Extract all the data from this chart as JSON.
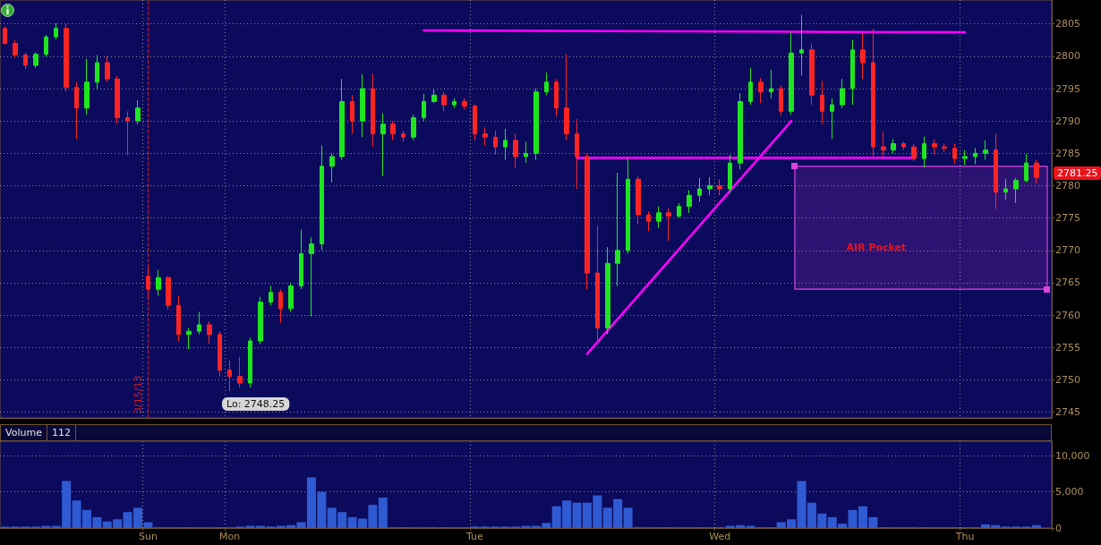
{
  "chart_data": [
    {
      "type": "candlestick",
      "categories": [
        null,
        null,
        null,
        null,
        null,
        null,
        null,
        null,
        null,
        null,
        null,
        null,
        null,
        null,
        "Sun",
        null,
        null,
        null,
        null,
        null,
        null,
        null,
        "Mon",
        null,
        null,
        null,
        null,
        null,
        null,
        null,
        null,
        null,
        null,
        null,
        null,
        null,
        null,
        null,
        null,
        null,
        null,
        null,
        null,
        null,
        null,
        null,
        "Tue",
        null,
        null,
        null,
        null,
        null,
        null,
        null,
        null,
        null,
        null,
        null,
        null,
        null,
        null,
        null,
        null,
        null,
        null,
        null,
        null,
        null,
        null,
        null,
        "Wed",
        null,
        null,
        null,
        null,
        null,
        null,
        null,
        null,
        null,
        null,
        null,
        null,
        null,
        null,
        null,
        null,
        null,
        null,
        null,
        null,
        null,
        null,
        null,
        "Thu",
        null,
        null,
        null,
        null,
        null,
        null,
        null,
        null
      ],
      "ohlc": [
        [
          2804.3,
          2804.6,
          2801.8,
          2802.0
        ],
        [
          2802.0,
          2802.5,
          2799.8,
          2800.2
        ],
        [
          2800.2,
          2800.6,
          2798.0,
          2798.6
        ],
        [
          2798.6,
          2800.6,
          2798.2,
          2800.3
        ],
        [
          2800.3,
          2803.3,
          2800.0,
          2803.0
        ],
        [
          2803.0,
          2805.1,
          2802.6,
          2804.3
        ],
        [
          2804.3,
          2805.0,
          2794.5,
          2795.2
        ],
        [
          2795.2,
          2796.0,
          2787.2,
          2792.0
        ],
        [
          2792.0,
          2799.6,
          2791.0,
          2796.0
        ],
        [
          2796.0,
          2800.2,
          2795.0,
          2799.0
        ],
        [
          2799.0,
          2800.0,
          2796.0,
          2796.5
        ],
        [
          2796.5,
          2797.0,
          2789.5,
          2790.5
        ],
        [
          2790.5,
          2791.5,
          2784.7,
          2790.0
        ],
        [
          2790.0,
          2793.2,
          2789.5,
          2792.0
        ],
        [
          2766.0,
          2767.5,
          2762.5,
          2764.0
        ],
        [
          2764.0,
          2767.0,
          2763.0,
          2765.8
        ],
        [
          2765.8,
          2766.0,
          2760.8,
          2761.5
        ],
        [
          2761.5,
          2763.0,
          2756.0,
          2757.0
        ],
        [
          2757.0,
          2758.0,
          2754.7,
          2757.5
        ],
        [
          2757.5,
          2760.5,
          2757.0,
          2758.5
        ],
        [
          2758.5,
          2759.0,
          2755.6,
          2757.0
        ],
        [
          2757.0,
          2757.5,
          2750.5,
          2751.5
        ],
        [
          2751.5,
          2753.0,
          2748.25,
          2750.5
        ],
        [
          2750.5,
          2753.5,
          2748.8,
          2749.5
        ],
        [
          2749.5,
          2756.5,
          2748.8,
          2756.0
        ],
        [
          2756.0,
          2762.8,
          2755.5,
          2762.0
        ],
        [
          2762.0,
          2764.5,
          2761.5,
          2763.5
        ],
        [
          2763.5,
          2764.0,
          2758.8,
          2761.0
        ],
        [
          2761.0,
          2765.0,
          2760.5,
          2764.5
        ],
        [
          2764.5,
          2773.2,
          2764.0,
          2769.5
        ],
        [
          2769.5,
          2772.0,
          2759.8,
          2771.0
        ],
        [
          2771.0,
          2786.2,
          2770.0,
          2783.0
        ],
        [
          2783.0,
          2785.0,
          2780.5,
          2784.5
        ],
        [
          2784.5,
          2796.5,
          2784.0,
          2793.0
        ],
        [
          2793.0,
          2794.0,
          2788.0,
          2790.0
        ],
        [
          2790.0,
          2797.2,
          2787.5,
          2795.0
        ],
        [
          2795.0,
          2797.3,
          2786.0,
          2788.0
        ],
        [
          2788.0,
          2791.2,
          2781.5,
          2789.5
        ],
        [
          2789.5,
          2790.0,
          2787.0,
          2788.0
        ],
        [
          2788.0,
          2788.5,
          2786.8,
          2787.5
        ],
        [
          2787.5,
          2791.0,
          2787.0,
          2790.5
        ],
        [
          2790.5,
          2794.2,
          2790.0,
          2793.0
        ],
        [
          2793.0,
          2795.0,
          2792.8,
          2794.0
        ],
        [
          2794.0,
          2794.5,
          2791.5,
          2792.5
        ],
        [
          2792.5,
          2793.5,
          2792.0,
          2793.0
        ],
        [
          2793.0,
          2793.5,
          2791.8,
          2792.3
        ],
        [
          2792.3,
          2792.5,
          2787.0,
          2788.0
        ],
        [
          2788.0,
          2789.0,
          2786.2,
          2787.5
        ],
        [
          2787.5,
          2788.5,
          2784.8,
          2786.0
        ],
        [
          2786.0,
          2788.8,
          2784.0,
          2787.0
        ],
        [
          2787.0,
          2788.0,
          2782.8,
          2784.5
        ],
        [
          2784.5,
          2786.8,
          2783.5,
          2785.0
        ],
        [
          2785.0,
          2795.0,
          2784.0,
          2794.5
        ],
        [
          2794.5,
          2797.5,
          2794.0,
          2796.0
        ],
        [
          2796.0,
          2796.5,
          2790.7,
          2792.0
        ],
        [
          2792.0,
          2800.3,
          2787.0,
          2788.0
        ],
        [
          2788.0,
          2790.3,
          2779.5,
          2784.5
        ],
        [
          2784.5,
          2785.0,
          2764.0,
          2766.5
        ],
        [
          2766.5,
          2773.8,
          2755.5,
          2758.0
        ],
        [
          2758.0,
          2770.5,
          2757.0,
          2768.0
        ],
        [
          2768.0,
          2782.0,
          2764.5,
          2770.0
        ],
        [
          2770.0,
          2784.2,
          2769.5,
          2781.0
        ],
        [
          2781.0,
          2781.5,
          2774.0,
          2775.5
        ],
        [
          2775.5,
          2776.0,
          2773.0,
          2774.5
        ],
        [
          2774.5,
          2776.8,
          2773.5,
          2775.8
        ],
        [
          2775.8,
          2776.5,
          2771.5,
          2775.3
        ],
        [
          2775.3,
          2777.3,
          2775.0,
          2776.8
        ],
        [
          2776.8,
          2779.3,
          2775.8,
          2778.5
        ],
        [
          2778.5,
          2781.2,
          2777.5,
          2779.5
        ],
        [
          2779.5,
          2781.3,
          2778.5,
          2780.0
        ],
        [
          2780.0,
          2781.0,
          2778.5,
          2779.5
        ],
        [
          2779.5,
          2784.8,
          2778.8,
          2783.5
        ],
        [
          2783.5,
          2794.3,
          2782.5,
          2793.0
        ],
        [
          2793.0,
          2798.2,
          2792.5,
          2796.0
        ],
        [
          2796.0,
          2796.6,
          2792.8,
          2794.5
        ],
        [
          2794.5,
          2797.9,
          2793.5,
          2795.0
        ],
        [
          2795.0,
          2795.5,
          2790.8,
          2791.5
        ],
        [
          2791.5,
          2803.7,
          2791.0,
          2800.5
        ],
        [
          2800.5,
          2806.4,
          2797.0,
          2801.0
        ],
        [
          2801.0,
          2802.0,
          2792.5,
          2794.0
        ],
        [
          2794.0,
          2796.2,
          2789.5,
          2791.5
        ],
        [
          2791.5,
          2793.5,
          2787.2,
          2792.5
        ],
        [
          2792.5,
          2796.5,
          2792.0,
          2795.0
        ],
        [
          2795.0,
          2802.5,
          2792.5,
          2801.0
        ],
        [
          2801.0,
          2803.6,
          2796.5,
          2799.0
        ],
        [
          2799.0,
          2804.3,
          2784.5,
          2786.0
        ],
        [
          2786.0,
          2788.4,
          2784.5,
          2785.5
        ],
        [
          2785.5,
          2787.2,
          2785.0,
          2786.5
        ],
        [
          2786.5,
          2786.8,
          2785.5,
          2786.0
        ],
        [
          2786.0,
          2786.5,
          2783.8,
          2784.2
        ],
        [
          2784.2,
          2787.6,
          2782.8,
          2786.5
        ],
        [
          2786.5,
          2787.2,
          2784.8,
          2786.0
        ],
        [
          2786.0,
          2786.5,
          2785.2,
          2785.8
        ],
        [
          2785.8,
          2786.5,
          2783.4,
          2784.2
        ],
        [
          2784.2,
          2785.5,
          2783.2,
          2784.5
        ],
        [
          2784.5,
          2785.8,
          2783.3,
          2785.0
        ],
        [
          2785.0,
          2787.0,
          2784.0,
          2785.5
        ],
        [
          2785.5,
          2788.0,
          2776.4,
          2779.0
        ],
        [
          2779.0,
          2781.0,
          2777.8,
          2779.5
        ],
        [
          2779.5,
          2781.2,
          2777.3,
          2780.8
        ],
        [
          2780.8,
          2784.9,
          2780.5,
          2783.5
        ],
        [
          2783.5,
          2784.0,
          2780.3,
          2781.25
        ],
        null
      ],
      "colors": [
        "#ff2424",
        "#ff2424",
        "#ff2424",
        "#1ee61e",
        "#1ee61e",
        "#1ee61e",
        "#ff2424",
        "#ff2424",
        "#1ee61e",
        "#1ee61e",
        "#ff2424",
        "#ff2424",
        "#ff2424",
        "#1ee61e",
        "#ff2424",
        "#1ee61e",
        "#ff2424",
        "#ff2424",
        "#1ee61e",
        "#1ee61e",
        "#ff2424",
        "#ff2424",
        "#ff2424",
        "#ff2424",
        "#1ee61e",
        "#1ee61e",
        "#1ee61e",
        "#ff2424",
        "#1ee61e",
        "#1ee61e",
        "#1ee61e",
        "#1ee61e",
        "#1ee61e",
        "#1ee61e",
        "#ff2424",
        "#1ee61e",
        "#ff2424",
        "#1ee61e",
        "#ff2424",
        "#ff2424",
        "#1ee61e",
        "#1ee61e",
        "#1ee61e",
        "#ff2424",
        "#1ee61e",
        "#ff2424",
        "#ff2424",
        "#ff2424",
        "#ff2424",
        "#1ee61e",
        "#ff2424",
        "#1ee61e",
        "#1ee61e",
        "#1ee61e",
        "#ff2424",
        "#ff2424",
        "#ff2424",
        "#ff2424",
        "#ff2424",
        "#1ee61e",
        "#1ee61e",
        "#1ee61e",
        "#ff2424",
        "#ff2424",
        "#1ee61e",
        "#ff2424",
        "#1ee61e",
        "#1ee61e",
        "#1ee61e",
        "#1ee61e",
        "#ff2424",
        "#1ee61e",
        "#1ee61e",
        "#1ee61e",
        "#ff2424",
        "#1ee61e",
        "#ff2424",
        "#1ee61e",
        "#1ee61e",
        "#ff2424",
        "#ff2424",
        "#1ee61e",
        "#1ee61e",
        "#1ee61e",
        "#ff2424",
        "#ff2424",
        "#ff2424",
        "#1ee61e",
        "#ff2424",
        "#ff2424",
        "#1ee61e",
        "#ff2424",
        "#ff2424",
        "#ff2424",
        "#1ee61e",
        "#1ee61e",
        "#1ee61e",
        "#ff2424",
        "#1ee61e",
        "#1ee61e",
        "#1ee61e",
        "#ff2424",
        null
      ],
      "series": [
        {
          "type": "line",
          "color": "#ff00ff",
          "values": [
            null,
            null,
            null,
            null,
            null,
            null,
            null,
            null,
            null,
            null,
            null,
            null,
            null,
            null,
            null,
            null,
            null,
            null,
            null,
            null,
            null,
            null,
            null,
            null,
            null,
            null,
            null,
            null,
            null,
            null,
            null,
            null,
            null,
            null,
            null,
            null,
            null,
            null,
            null,
            null,
            null,
            2804.0,
            null,
            null,
            null,
            null,
            null,
            null,
            null,
            null,
            null,
            null,
            null,
            null,
            null,
            null,
            null,
            null,
            null,
            null,
            null,
            null,
            null,
            null,
            null,
            null,
            null,
            null,
            null,
            null,
            null,
            null,
            null,
            null,
            null,
            null,
            null,
            null,
            null,
            null,
            null,
            null,
            null,
            null,
            null,
            null,
            null,
            null,
            null,
            null,
            null,
            null,
            null,
            null,
            2803.7,
            null,
            null,
            null,
            null,
            null,
            null,
            null,
            null
          ]
        },
        {
          "type": "line",
          "color": "#ff00ff",
          "values": [
            null,
            null,
            null,
            null,
            null,
            null,
            null,
            null,
            null,
            null,
            null,
            null,
            null,
            null,
            null,
            null,
            null,
            null,
            null,
            null,
            null,
            null,
            null,
            null,
            null,
            null,
            null,
            null,
            null,
            null,
            null,
            null,
            null,
            null,
            null,
            null,
            null,
            null,
            null,
            null,
            null,
            null,
            null,
            null,
            null,
            null,
            null,
            null,
            null,
            null,
            null,
            null,
            null,
            null,
            null,
            null,
            2784.3,
            null,
            null,
            null,
            null,
            null,
            null,
            null,
            null,
            null,
            null,
            null,
            null,
            null,
            null,
            null,
            null,
            null,
            null,
            null,
            null,
            null,
            null,
            null,
            null,
            null,
            null,
            null,
            null,
            null,
            null,
            null,
            null,
            2784.3,
            null,
            null,
            null,
            null,
            null,
            null,
            null,
            null,
            null,
            null,
            null,
            null,
            null
          ]
        },
        {
          "type": "line",
          "color": "#ff00ff",
          "values": [
            null,
            null,
            null,
            null,
            null,
            null,
            null,
            null,
            null,
            null,
            null,
            null,
            null,
            null,
            null,
            null,
            null,
            null,
            null,
            null,
            null,
            null,
            null,
            null,
            null,
            null,
            null,
            null,
            null,
            null,
            null,
            null,
            null,
            null,
            null,
            null,
            null,
            null,
            null,
            null,
            null,
            null,
            null,
            null,
            null,
            null,
            null,
            null,
            null,
            null,
            null,
            null,
            null,
            null,
            null,
            null,
            null,
            2754.0,
            null,
            null,
            null,
            null,
            null,
            null,
            null,
            null,
            null,
            null,
            null,
            null,
            null,
            null,
            null,
            null,
            null,
            null,
            null,
            2790.0,
            null,
            null,
            null,
            null,
            null,
            null,
            null,
            null,
            null,
            null,
            null,
            null,
            null,
            null,
            null,
            null,
            null,
            null,
            null,
            null,
            null,
            null,
            null,
            null,
            null
          ]
        }
      ],
      "ylim": [
        2744.1,
        2808.7
      ],
      "yticks": [
        2745,
        2750,
        2755,
        2760,
        2765,
        2770,
        2775,
        2780,
        2785,
        2790,
        2795,
        2800,
        2805
      ],
      "tick_labels": "y",
      "grid": true,
      "ref_lines": [
        {
          "axis": "x",
          "value": "Sun",
          "label": "3/15/13",
          "color": "#c8202c",
          "line_style": "dashed"
        }
      ],
      "bands": [
        {
          "axis": "y",
          "from": 2764,
          "to": 2783,
          "label": "AIR Pocket",
          "color": "#dd44dd"
        }
      ],
      "annotations": [
        {
          "text": "Lo: 2748.25",
          "x": "Mon",
          "y": 2748.25
        },
        "2781.25"
      ]
    },
    {
      "type": "bar",
      "title": "Volume",
      "annotations": [
        "112"
      ],
      "categories": [
        null,
        null,
        null,
        null,
        null,
        null,
        null,
        null,
        null,
        null,
        null,
        null,
        null,
        null,
        "Sun",
        null,
        null,
        null,
        null,
        null,
        null,
        null,
        "Mon",
        null,
        null,
        null,
        null,
        null,
        null,
        null,
        null,
        null,
        null,
        null,
        null,
        null,
        null,
        null,
        null,
        null,
        null,
        null,
        null,
        null,
        null,
        null,
        "Tue",
        null,
        null,
        null,
        null,
        null,
        null,
        null,
        null,
        null,
        null,
        null,
        null,
        null,
        null,
        null,
        null,
        null,
        null,
        null,
        null,
        null,
        null,
        null,
        "Wed",
        null,
        null,
        null,
        null,
        null,
        null,
        null,
        null,
        null,
        null,
        null,
        null,
        null,
        null,
        null,
        null,
        null,
        null,
        null,
        null,
        null,
        null,
        null,
        "Thu",
        null,
        null,
        null,
        null,
        null,
        null,
        null,
        null
      ],
      "values": [
        200,
        200,
        200,
        200,
        300,
        300,
        6500,
        3800,
        2500,
        1500,
        900,
        1200,
        2200,
        2800,
        800,
        100,
        100,
        100,
        100,
        100,
        100,
        100,
        100,
        200,
        300,
        300,
        200,
        300,
        400,
        800,
        7000,
        5000,
        2800,
        2200,
        1500,
        1300,
        3200,
        4200,
        100,
        100,
        100,
        100,
        100,
        100,
        100,
        100,
        200,
        200,
        200,
        200,
        200,
        300,
        300,
        700,
        3000,
        3800,
        3500,
        3500,
        4500,
        2800,
        4000,
        2800,
        100,
        100,
        100,
        100,
        100,
        100,
        100,
        100,
        100,
        300,
        400,
        300,
        100,
        100,
        800,
        1200,
        6500,
        3500,
        2000,
        1500,
        600,
        2500,
        3000,
        1500,
        100,
        100,
        100,
        100,
        100,
        100,
        100,
        100,
        100,
        100,
        500,
        400,
        200,
        200,
        200,
        400,
        null
      ],
      "color": "#2f5ad2",
      "ylim": [
        0,
        12000
      ],
      "yticks": [
        0,
        {
          "value": 5000,
          "label": "5,000"
        },
        {
          "value": 10000,
          "label": "10,000"
        }
      ],
      "grid": true
    }
  ]
}
